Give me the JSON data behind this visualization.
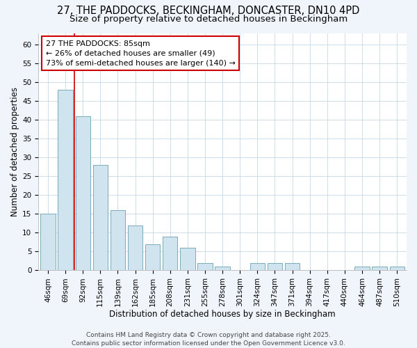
{
  "title_line1": "27, THE PADDOCKS, BECKINGHAM, DONCASTER, DN10 4PD",
  "title_line2": "Size of property relative to detached houses in Beckingham",
  "xlabel": "Distribution of detached houses by size in Beckingham",
  "ylabel": "Number of detached properties",
  "categories": [
    "46sqm",
    "69sqm",
    "92sqm",
    "115sqm",
    "139sqm",
    "162sqm",
    "185sqm",
    "208sqm",
    "231sqm",
    "255sqm",
    "278sqm",
    "301sqm",
    "324sqm",
    "347sqm",
    "371sqm",
    "394sqm",
    "417sqm",
    "440sqm",
    "464sqm",
    "487sqm",
    "510sqm"
  ],
  "values": [
    15,
    48,
    41,
    28,
    16,
    12,
    7,
    9,
    6,
    2,
    1,
    0,
    2,
    2,
    2,
    0,
    0,
    0,
    1,
    1,
    1
  ],
  "bar_color": "#d0e4f0",
  "bar_edge_color": "#7aaabb",
  "grid_color": "#c5d8e8",
  "bg_color": "#ffffff",
  "fig_bg_color": "#f0f5fb",
  "ref_line_x": 1.5,
  "ref_line_color": "#cc0000",
  "annotation_text": "27 THE PADDOCKS: 85sqm\n← 26% of detached houses are smaller (49)\n73% of semi-detached houses are larger (140) →",
  "annotation_box_facecolor": "#ffffff",
  "annotation_box_edgecolor": "#cc0000",
  "ylim": [
    0,
    63
  ],
  "yticks": [
    0,
    5,
    10,
    15,
    20,
    25,
    30,
    35,
    40,
    45,
    50,
    55,
    60
  ],
  "footer": "Contains HM Land Registry data © Crown copyright and database right 2025.\nContains public sector information licensed under the Open Government Licence v3.0.",
  "title_fontsize": 10.5,
  "subtitle_fontsize": 9.5,
  "axis_label_fontsize": 8.5,
  "tick_fontsize": 7.5,
  "annot_fontsize": 8,
  "footer_fontsize": 6.5
}
